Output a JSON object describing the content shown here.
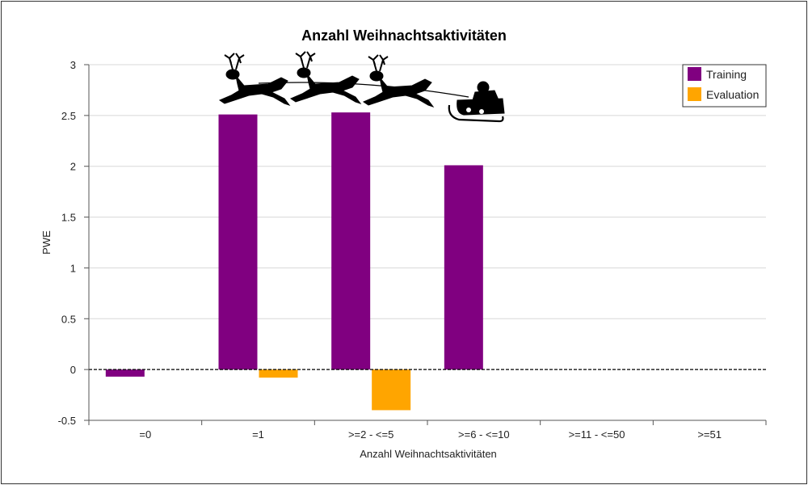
{
  "colors": {
    "training": "#800080",
    "evaluation": "#FFA500",
    "grid": "#d8d8d8",
    "axis": "#555555",
    "zero_line": "#000000"
  },
  "decoration": {
    "icon": "santa-sleigh-reindeer-silhouette"
  },
  "chart_data": {
    "type": "bar",
    "title": "Anzahl Weihnachtsaktivitäten",
    "xlabel": "Anzahl Weihnachtsaktivitäten",
    "ylabel": "PWE",
    "ylim": [
      -0.5,
      3
    ],
    "yticks": [
      "-0.5",
      "0",
      "0.5",
      "1",
      "1.5",
      "2",
      "2.5",
      "3"
    ],
    "ytick_values": [
      -0.5,
      0,
      0.5,
      1,
      1.5,
      2,
      2.5,
      3
    ],
    "grid": true,
    "legend_position": "top-right",
    "categories": [
      "=0",
      "=1",
      ">=2 - <=5",
      ">=6 - <=10",
      ">=11 - <=50",
      ">=51"
    ],
    "series": [
      {
        "name": "Training",
        "color_key": "training",
        "values": [
          -0.07,
          2.51,
          2.53,
          2.01,
          null,
          null
        ]
      },
      {
        "name": "Evaluation",
        "color_key": "evaluation",
        "values": [
          null,
          -0.08,
          -0.4,
          null,
          null,
          null
        ]
      }
    ]
  }
}
